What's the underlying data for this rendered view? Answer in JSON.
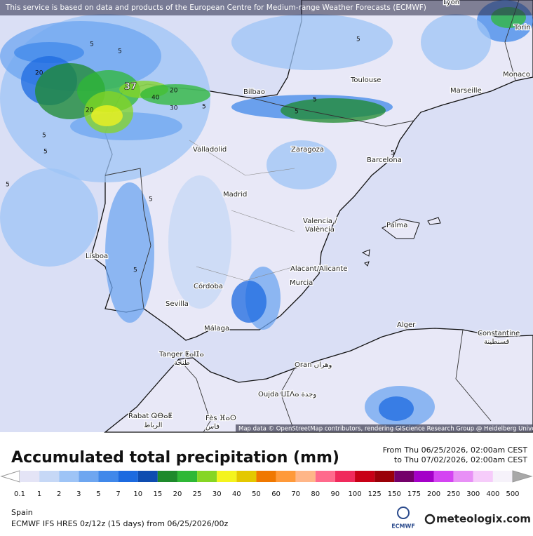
{
  "header": {
    "notice": "This service is based on data and products of the European Centre for Medium-range Weather Forecasts (ECMWF)"
  },
  "map": {
    "cities": [
      "Lyon",
      "Torin",
      "Toulouse",
      "Monaco",
      "Marseille",
      "Bilbao",
      "Valladolid",
      "Zaragoza",
      "Barcelona",
      "Madrid",
      "Valencia /",
      "València",
      "Palma",
      "Lisboa",
      "Alacant/Alicante",
      "Murcia",
      "Córdoba",
      "Sevilla",
      "Málaga",
      "Alger",
      "Constantine",
      "قسنطينة",
      "Tanger ⵟⴰⵏⵊⴰ",
      "طنجة",
      "Oran وهران",
      "Oujda ⵡⵊⴷⴰ وجدة",
      "Rabat ⵕⴱⴰⵟ",
      "الرباط",
      "Fès ⴼⴰⵙ",
      "فاس"
    ],
    "contour_labels": [
      "5",
      "5",
      "20",
      "37",
      "40",
      "20",
      "30",
      "20",
      "5",
      "5",
      "5",
      "5",
      "5",
      "5",
      "5",
      "5",
      "5",
      "5"
    ],
    "attribution": "Map data © OpenStreetMap contributors, rendering GIScience Research Group @ Heidelberg University"
  },
  "legend": {
    "title": "Accumulated total precipitation (mm)",
    "from": "From Thu 06/25/2026, 02:00am CEST",
    "to": "to Thu 07/02/2026, 02:00am CEST",
    "ticks": [
      "0.1",
      "1",
      "2",
      "3",
      "5",
      "7",
      "10",
      "15",
      "20",
      "25",
      "30",
      "40",
      "50",
      "60",
      "70",
      "80",
      "90",
      "100",
      "125",
      "150",
      "175",
      "200",
      "250",
      "300",
      "400",
      "500"
    ],
    "colors": [
      "#e4e4f6",
      "#c6d8f6",
      "#9ec4f6",
      "#6ea6f0",
      "#4088ea",
      "#1c6ae0",
      "#0e4cb0",
      "#1e8a2c",
      "#2fb836",
      "#86d624",
      "#f4f41e",
      "#e4c800",
      "#f07800",
      "#ff9a3a",
      "#ffb688",
      "#ff6a8c",
      "#f02a5c",
      "#c80016",
      "#9a0008",
      "#74006a",
      "#a400c8",
      "#d444f2",
      "#e890f6",
      "#f6ccfa",
      "#f6f2fa"
    ],
    "under_color": "#ffffff",
    "over_color": "#a8a8a8"
  },
  "footer": {
    "region": "Spain",
    "model": "ECMWF IFS HRES 0z/12z (15 days) from  06/25/2026/00z",
    "ecmwf_logo": "ECMWF",
    "brand": "meteologix.com"
  }
}
